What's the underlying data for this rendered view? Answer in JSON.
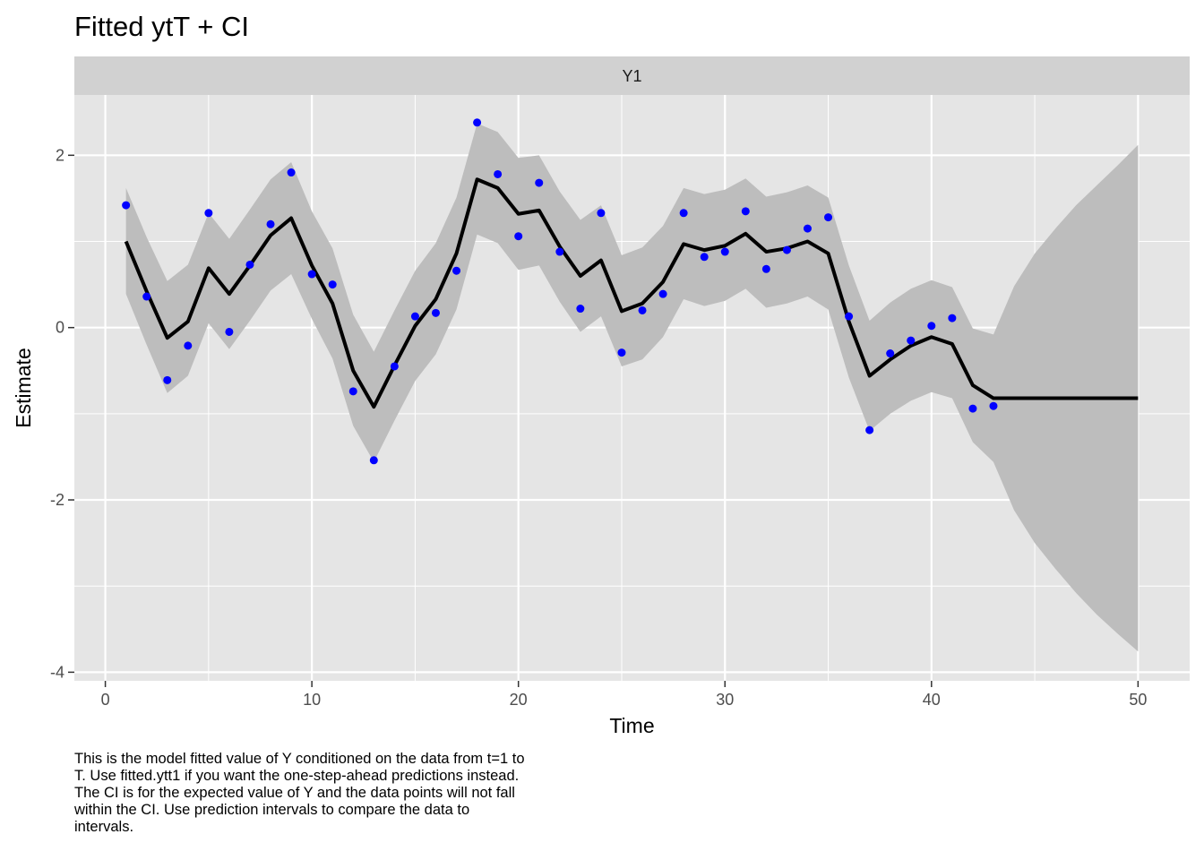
{
  "chart_data": {
    "type": "line",
    "title": "Fitted ytT + CI",
    "facet_label": "Y1",
    "xlabel": "Time",
    "ylabel": "Estimate",
    "xlim": [
      -1.5,
      52.5
    ],
    "ylim": [
      -4.1,
      2.7
    ],
    "x_ticks": [
      0,
      10,
      20,
      30,
      40,
      50
    ],
    "y_ticks": [
      -4,
      -2,
      0,
      2
    ],
    "grid": true,
    "legend": "none",
    "colors": {
      "points": "#0000ff",
      "fitted_line": "#000000",
      "ci_band": "#bdbdbd",
      "panel_bg": "#e5e5e5",
      "strip_bg": "#d1d1d1",
      "grid": "#ffffff"
    },
    "x": [
      1,
      2,
      3,
      4,
      5,
      6,
      7,
      8,
      9,
      10,
      11,
      12,
      13,
      14,
      15,
      16,
      17,
      18,
      19,
      20,
      21,
      22,
      23,
      24,
      25,
      26,
      27,
      28,
      29,
      30,
      31,
      32,
      33,
      34,
      35,
      36,
      37,
      38,
      39,
      40,
      41,
      42,
      43,
      44,
      45,
      46,
      47,
      48,
      49,
      50
    ],
    "series": [
      {
        "role": "fitted",
        "values": [
          1.0,
          0.42,
          -0.12,
          0.07,
          0.69,
          0.39,
          0.72,
          1.07,
          1.27,
          0.72,
          0.28,
          -0.5,
          -0.92,
          -0.44,
          0.02,
          0.33,
          0.86,
          1.72,
          1.62,
          1.32,
          1.36,
          0.94,
          0.6,
          0.78,
          0.19,
          0.28,
          0.53,
          0.97,
          0.9,
          0.95,
          1.09,
          0.88,
          0.92,
          1.0,
          0.86,
          0.07,
          -0.56,
          -0.37,
          -0.21,
          -0.11,
          -0.19,
          -0.67,
          -0.82,
          -0.82,
          -0.82,
          -0.82,
          -0.82,
          -0.82,
          -0.82,
          -0.82
        ]
      },
      {
        "role": "ci_upper",
        "values": [
          1.62,
          1.05,
          0.54,
          0.73,
          1.33,
          1.03,
          1.37,
          1.72,
          1.92,
          1.35,
          0.92,
          0.15,
          -0.28,
          0.2,
          0.66,
          0.98,
          1.51,
          2.37,
          2.27,
          1.97,
          2.0,
          1.58,
          1.25,
          1.42,
          0.84,
          0.93,
          1.18,
          1.62,
          1.55,
          1.6,
          1.73,
          1.52,
          1.57,
          1.65,
          1.51,
          0.72,
          0.08,
          0.29,
          0.45,
          0.55,
          0.47,
          -0.01,
          -0.08,
          0.48,
          0.86,
          1.15,
          1.42,
          1.65,
          1.88,
          2.12
        ]
      },
      {
        "role": "ci_lower",
        "values": [
          0.39,
          -0.2,
          -0.76,
          -0.56,
          0.05,
          -0.25,
          0.08,
          0.43,
          0.62,
          0.1,
          -0.36,
          -1.14,
          -1.56,
          -1.08,
          -0.62,
          -0.31,
          0.21,
          1.08,
          0.98,
          0.67,
          0.72,
          0.3,
          -0.05,
          0.13,
          -0.45,
          -0.37,
          -0.11,
          0.33,
          0.25,
          0.31,
          0.45,
          0.23,
          0.28,
          0.36,
          0.21,
          -0.58,
          -1.2,
          -1.0,
          -0.85,
          -0.75,
          -0.82,
          -1.33,
          -1.56,
          -2.12,
          -2.5,
          -2.8,
          -3.08,
          -3.33,
          -3.55,
          -3.76
        ]
      },
      {
        "role": "observed",
        "x": [
          1,
          2,
          3,
          4,
          5,
          6,
          7,
          8,
          9,
          10,
          11,
          12,
          13,
          14,
          15,
          16,
          17,
          18,
          19,
          20,
          21,
          22,
          23,
          24,
          25,
          26,
          27,
          28,
          29,
          30,
          31,
          32,
          33,
          34,
          35,
          36,
          37,
          38,
          39,
          40,
          41,
          42,
          43
        ],
        "values": [
          1.42,
          0.36,
          -0.61,
          -0.21,
          1.33,
          -0.05,
          0.73,
          1.2,
          1.8,
          0.62,
          0.5,
          -0.74,
          -1.54,
          -0.45,
          0.13,
          0.17,
          0.66,
          2.38,
          1.78,
          1.06,
          1.68,
          0.88,
          0.22,
          1.33,
          -0.29,
          0.2,
          0.39,
          1.33,
          0.82,
          0.88,
          1.35,
          0.68,
          0.9,
          1.15,
          1.28,
          0.13,
          -1.19,
          -0.3,
          -0.15,
          0.02,
          0.11,
          -0.94,
          -0.91
        ]
      }
    ]
  },
  "caption": "This is the model fitted value of Y conditioned on the data from t=1 to\nT. Use fitted.ytt1 if you want the one-step-ahead predictions instead.\nThe CI is for the expected value of Y and the data points will not fall\nwithin the CI. Use prediction intervals to compare the data to\nintervals."
}
